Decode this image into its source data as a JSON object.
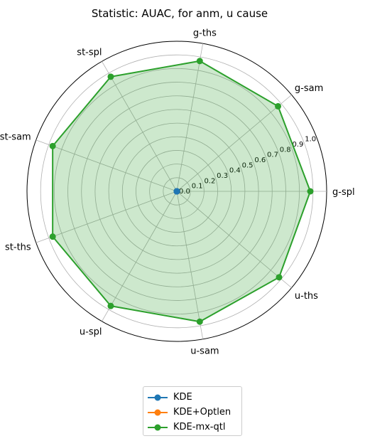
{
  "chart_data": {
    "type": "radar",
    "title": "Statistic: AUAC, for anm, u cause",
    "axes": [
      "g-spl",
      "g-sam",
      "g-ths",
      "st-spl",
      "st-sam",
      "st-ths",
      "u-spl",
      "u-sam",
      "u-ths"
    ],
    "radial_ticks": [
      "0.0",
      "0.1",
      "0.2",
      "0.3",
      "0.4",
      "0.5",
      "0.6",
      "0.7",
      "0.8",
      "0.9",
      "1.0"
    ],
    "rlim": [
      0,
      1.1
    ],
    "grid": true,
    "legend_position": "bottom-center",
    "series": [
      {
        "name": "KDE",
        "color": "#1f77b4",
        "values": [
          0,
          0,
          0,
          0,
          0,
          0,
          0,
          0,
          0
        ]
      },
      {
        "name": "KDE+Optlen",
        "color": "#ff7f0e",
        "values": [
          0,
          0,
          0,
          0,
          0,
          0,
          0,
          0,
          0
        ]
      },
      {
        "name": "KDE-mx-qtl",
        "color": "#2ca02c",
        "fill": "#2ca02c",
        "values": [
          0.98,
          0.97,
          0.97,
          0.97,
          0.97,
          0.97,
          0.97,
          0.97,
          0.98
        ]
      }
    ]
  }
}
